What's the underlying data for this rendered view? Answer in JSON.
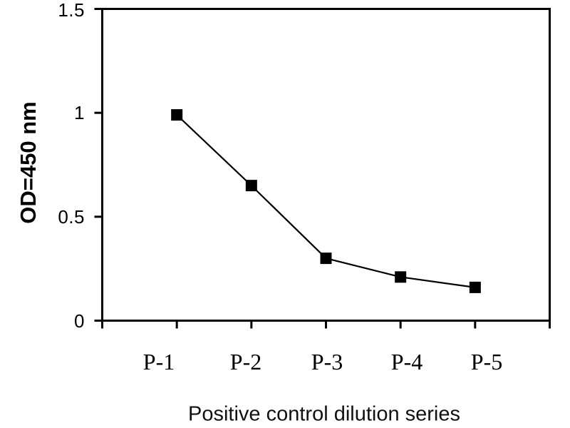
{
  "chart_data": {
    "type": "line",
    "title": "",
    "xlabel": "Positive control dilution series",
    "ylabel": "OD=450 nm",
    "categories": [
      "P-1",
      "P-2",
      "P-3",
      "P-4",
      "P-5"
    ],
    "values": [
      0.99,
      0.65,
      0.3,
      0.21,
      0.16
    ],
    "ylim": [
      0,
      1.5
    ],
    "yticks": [
      0,
      0.5,
      1,
      1.5
    ],
    "ytick_labels": [
      "0",
      "0.5",
      "1",
      "1.5"
    ],
    "grid": false,
    "legend": "none",
    "marker": "filled-square",
    "colors": {
      "line": "#000000",
      "marker": "#000000",
      "frame": "#000000",
      "text": "#000000",
      "background": "#ffffff"
    }
  }
}
